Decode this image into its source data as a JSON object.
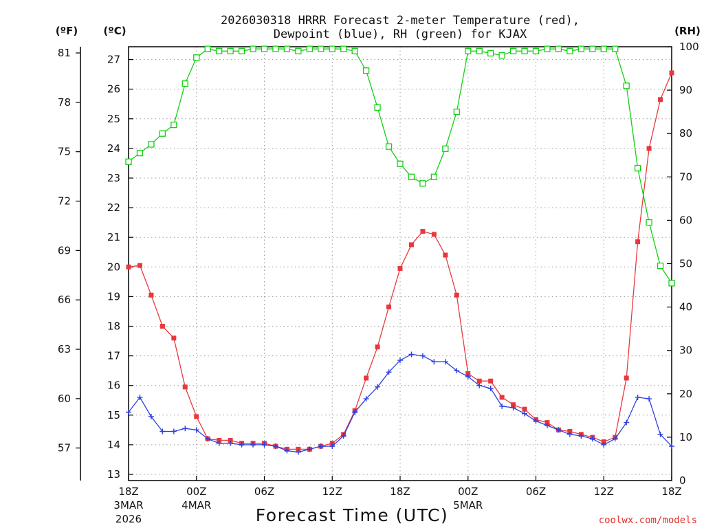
{
  "chart_data": {
    "type": "line",
    "title_line1": "2026030318 HRRR Forecast 2-meter Temperature (red),",
    "title_line2": "Dewpoint (blue), RH (green) for KJAX",
    "xlabel": "Forecast Time (UTC)",
    "credit": "coolwx.com/models",
    "units": {
      "fahrenheit": "(ºF)",
      "celsius": "(ºC)",
      "rh": "(RH)"
    },
    "x_range": [
      0,
      48
    ],
    "celsius_range": [
      12.8,
      27.5
    ],
    "rh_range": [
      0,
      100
    ],
    "x_ticks": [
      {
        "hour": 0,
        "label": "18Z",
        "sub1": "3MAR",
        "sub2": "2026"
      },
      {
        "hour": 6,
        "label": "00Z",
        "sub1": "4MAR",
        "sub2": ""
      },
      {
        "hour": 12,
        "label": "06Z",
        "sub1": "",
        "sub2": ""
      },
      {
        "hour": 18,
        "label": "12Z",
        "sub1": "",
        "sub2": ""
      },
      {
        "hour": 24,
        "label": "18Z",
        "sub1": "",
        "sub2": ""
      },
      {
        "hour": 30,
        "label": "00Z",
        "sub1": "5MAR",
        "sub2": ""
      },
      {
        "hour": 36,
        "label": "06Z",
        "sub1": "",
        "sub2": ""
      },
      {
        "hour": 42,
        "label": "12Z",
        "sub1": "",
        "sub2": ""
      },
      {
        "hour": 48,
        "label": "18Z",
        "sub1": "",
        "sub2": ""
      }
    ],
    "celsius_ticks": [
      13,
      14,
      15,
      16,
      17,
      18,
      19,
      20,
      21,
      22,
      23,
      24,
      25,
      26,
      27
    ],
    "fahrenheit_ticks": [
      57,
      60,
      63,
      66,
      69,
      72,
      75,
      78,
      81
    ],
    "rh_ticks": [
      0,
      10,
      20,
      30,
      40,
      50,
      60,
      70,
      80,
      90,
      100
    ],
    "series": [
      {
        "name": "Temperature",
        "color": "#e8383d",
        "marker": "filled-square",
        "axis": "celsius",
        "values": [
          20.0,
          20.05,
          19.05,
          18.0,
          17.6,
          15.95,
          14.95,
          14.2,
          14.15,
          14.15,
          14.05,
          14.05,
          14.05,
          13.95,
          13.85,
          13.85,
          13.85,
          13.95,
          14.05,
          14.35,
          15.15,
          16.25,
          17.3,
          18.65,
          19.95,
          20.75,
          21.2,
          21.1,
          20.4,
          19.05,
          16.4,
          16.15,
          16.15,
          15.6,
          15.35,
          15.2,
          14.85,
          14.75,
          14.5,
          14.45,
          14.35,
          14.25,
          14.1,
          14.25,
          16.25,
          20.85,
          24.0,
          25.65,
          26.55
        ]
      },
      {
        "name": "Dewpoint",
        "color": "#2b3fe0",
        "marker": "plus",
        "axis": "celsius",
        "values": [
          15.1,
          15.6,
          14.95,
          14.45,
          14.45,
          14.55,
          14.5,
          14.2,
          14.05,
          14.05,
          14.0,
          14.0,
          14.0,
          13.95,
          13.8,
          13.75,
          13.85,
          13.95,
          13.95,
          14.3,
          15.1,
          15.55,
          15.95,
          16.45,
          16.85,
          17.05,
          17.0,
          16.8,
          16.8,
          16.5,
          16.3,
          16.0,
          15.9,
          15.3,
          15.25,
          15.05,
          14.8,
          14.65,
          14.5,
          14.35,
          14.3,
          14.2,
          14.0,
          14.2,
          14.75,
          15.6,
          15.55,
          14.35,
          13.95
        ]
      },
      {
        "name": "RH",
        "color": "#11d111",
        "marker": "open-square",
        "axis": "rh",
        "values": [
          73.5,
          75.5,
          77.5,
          80.0,
          82.0,
          91.5,
          97.5,
          99.5,
          99.0,
          99.0,
          99.0,
          99.5,
          99.5,
          99.5,
          99.5,
          99.0,
          99.5,
          99.5,
          99.5,
          99.5,
          99.0,
          94.5,
          86.0,
          77.0,
          73.0,
          70.0,
          68.5,
          70.0,
          76.5,
          85.0,
          99.0,
          99.0,
          98.5,
          98.0,
          99.0,
          99.0,
          99.0,
          99.5,
          99.5,
          99.0,
          99.5,
          99.5,
          99.5,
          99.5,
          91.0,
          72.0,
          59.5,
          49.5,
          45.5
        ]
      }
    ]
  }
}
